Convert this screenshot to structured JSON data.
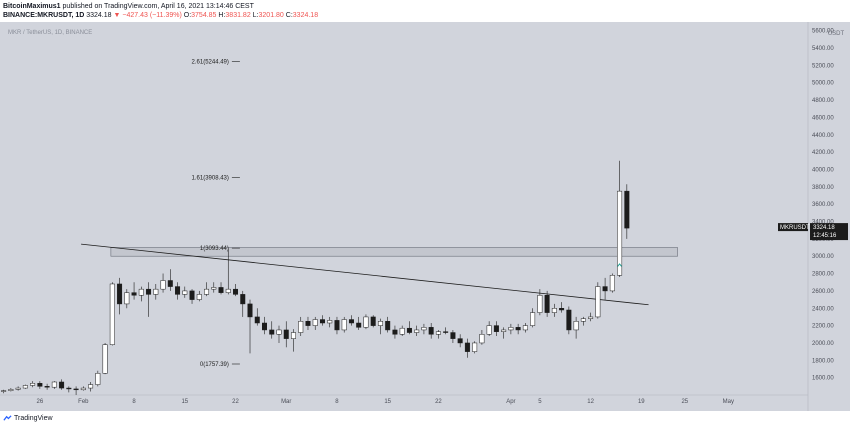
{
  "header": {
    "author": "BitcoinMaximus1",
    "published_text": "published on TradingView.com, April 16, 2021 13:14:46 CEST",
    "symbol_line": "BINANCE:MKRUSDT, 1D",
    "price": "3324.18",
    "change": "▼ −427.43 (−11.39%)",
    "o_label": "O:",
    "o_value": "3754.85",
    "h_label": "H:",
    "h_value": "3831.82",
    "l_label": "L:",
    "l_value": "3201.80",
    "c_label": "C:",
    "c_value": "3324.18"
  },
  "chart_watermark": "MKR / TetherUS, 1D, BINANCE",
  "price_tag": {
    "symbol": "MKRUSDT",
    "price": "3324.18",
    "countdown": "12:45:16"
  },
  "axis_unit": "USDT",
  "footer": {
    "brand": "TradingView"
  },
  "colors": {
    "bg": "#d1d4dc",
    "up": "#ffffff",
    "down": "#1c1c1c",
    "line": "#1c1c1c",
    "arrow": "#26a69a"
  },
  "chart_data": {
    "type": "candlestick",
    "ylim": [
      1400,
      5700
    ],
    "y_ticks": [
      1600,
      1800,
      2000,
      2200,
      2400,
      2600,
      2800,
      3000,
      3200,
      3400,
      3600,
      3800,
      4000,
      4200,
      4400,
      4600,
      4800,
      5000,
      5200,
      5400,
      5600
    ],
    "y_tick_labels": [
      "1600.00",
      "1800.00",
      "2000.00",
      "2200.00",
      "2400.00",
      "2600.00",
      "2800.00",
      "3000.00",
      "3200.00",
      "3400.00",
      "3600.00",
      "3800.00",
      "4000.00",
      "4200.00",
      "4400.00",
      "4600.00",
      "4800.00",
      "5000.00",
      "5200.00",
      "5400.00",
      "5600.00"
    ],
    "x_ticks": [
      {
        "label": "26",
        "i": -6
      },
      {
        "label": "Feb",
        "i": 0
      },
      {
        "label": "8",
        "i": 7
      },
      {
        "label": "15",
        "i": 14
      },
      {
        "label": "22",
        "i": 21
      },
      {
        "label": "Mar",
        "i": 28
      },
      {
        "label": "8",
        "i": 35
      },
      {
        "label": "15",
        "i": 42
      },
      {
        "label": "22",
        "i": 49
      },
      {
        "label": "Apr",
        "i": 59
      },
      {
        "label": "5",
        "i": 63
      },
      {
        "label": "12",
        "i": 70
      },
      {
        "label": "19",
        "i": 77
      },
      {
        "label": "25",
        "i": 83
      },
      {
        "label": "May",
        "i": 89
      }
    ],
    "x_range": [
      -11.5,
      100
    ],
    "fib_levels": [
      {
        "ratio": "2.61",
        "value": 5244.49,
        "label": "2.61(5244.49)"
      },
      {
        "ratio": "1.61",
        "value": 3908.43,
        "label": "1.61(3908.43)"
      },
      {
        "ratio": "1",
        "value": 3093.44,
        "label": "1(3093.44)"
      },
      {
        "ratio": "0",
        "value": 1757.39,
        "label": "0(1757.39)"
      }
    ],
    "resistance_zone": {
      "from_i": 3.8,
      "to_i": 82,
      "low": 3000,
      "high": 3100
    },
    "trendline": {
      "start": {
        "i": 3,
        "price": 3110
      },
      "end": {
        "i": 78,
        "price": 2440
      }
    },
    "last_price": 3324.18,
    "arrow_at": {
      "i": 74,
      "price": 2900
    },
    "candles": [
      [
        -11,
        1440,
        1460,
        1420,
        1450
      ],
      [
        -10,
        1450,
        1480,
        1440,
        1465
      ],
      [
        -9,
        1465,
        1500,
        1450,
        1480
      ],
      [
        -8,
        1480,
        1520,
        1470,
        1510
      ],
      [
        -7,
        1510,
        1560,
        1490,
        1535
      ],
      [
        -6,
        1535,
        1560,
        1470,
        1500
      ],
      [
        -5,
        1500,
        1530,
        1460,
        1490
      ],
      [
        -4,
        1490,
        1560,
        1470,
        1550
      ],
      [
        -3,
        1550,
        1580,
        1460,
        1480
      ],
      [
        -2,
        1480,
        1500,
        1430,
        1470
      ],
      [
        -1,
        1470,
        1500,
        1400,
        1460
      ],
      [
        0,
        1460,
        1500,
        1450,
        1480
      ],
      [
        1,
        1480,
        1550,
        1440,
        1520
      ],
      [
        2,
        1520,
        1680,
        1500,
        1650
      ],
      [
        3,
        1650,
        2000,
        1640,
        1980
      ],
      [
        4,
        1980,
        2700,
        1970,
        2680
      ],
      [
        5,
        2680,
        2750,
        2330,
        2450
      ],
      [
        6,
        2450,
        2620,
        2400,
        2580
      ],
      [
        7,
        2580,
        2700,
        2500,
        2550
      ],
      [
        8,
        2550,
        2650,
        2480,
        2620
      ],
      [
        9,
        2620,
        2700,
        2300,
        2560
      ],
      [
        10,
        2560,
        2680,
        2500,
        2620
      ],
      [
        11,
        2620,
        2800,
        2580,
        2720
      ],
      [
        12,
        2720,
        2850,
        2600,
        2650
      ],
      [
        13,
        2650,
        2700,
        2500,
        2560
      ],
      [
        14,
        2560,
        2650,
        2520,
        2600
      ],
      [
        15,
        2600,
        2620,
        2450,
        2500
      ],
      [
        16,
        2500,
        2600,
        2480,
        2560
      ],
      [
        17,
        2560,
        2700,
        2540,
        2620
      ],
      [
        18,
        2620,
        2700,
        2580,
        2640
      ],
      [
        19,
        2640,
        2700,
        2560,
        2580
      ],
      [
        20,
        2580,
        3090,
        2560,
        2620
      ],
      [
        21,
        2620,
        2680,
        2540,
        2560
      ],
      [
        22,
        2560,
        2600,
        2300,
        2450
      ],
      [
        23,
        2450,
        2500,
        1880,
        2300
      ],
      [
        24,
        2300,
        2400,
        2200,
        2230
      ],
      [
        25,
        2230,
        2300,
        2100,
        2150
      ],
      [
        26,
        2150,
        2250,
        2050,
        2100
      ],
      [
        27,
        2100,
        2200,
        2000,
        2150
      ],
      [
        28,
        2150,
        2250,
        1950,
        2050
      ],
      [
        29,
        2050,
        2160,
        1900,
        2120
      ],
      [
        30,
        2120,
        2300,
        2080,
        2250
      ],
      [
        31,
        2250,
        2300,
        2150,
        2200
      ],
      [
        32,
        2200,
        2300,
        2150,
        2270
      ],
      [
        33,
        2270,
        2320,
        2200,
        2230
      ],
      [
        34,
        2230,
        2300,
        2180,
        2260
      ],
      [
        35,
        2260,
        2300,
        2100,
        2150
      ],
      [
        36,
        2150,
        2300,
        2120,
        2270
      ],
      [
        37,
        2270,
        2320,
        2200,
        2230
      ],
      [
        38,
        2230,
        2300,
        2150,
        2180
      ],
      [
        39,
        2180,
        2330,
        2160,
        2300
      ],
      [
        40,
        2300,
        2320,
        2180,
        2200
      ],
      [
        41,
        2200,
        2280,
        2100,
        2250
      ],
      [
        42,
        2250,
        2300,
        2120,
        2150
      ],
      [
        43,
        2150,
        2200,
        2050,
        2100
      ],
      [
        44,
        2100,
        2200,
        2080,
        2170
      ],
      [
        45,
        2170,
        2250,
        2100,
        2120
      ],
      [
        46,
        2120,
        2200,
        2080,
        2150
      ],
      [
        47,
        2150,
        2220,
        2100,
        2180
      ],
      [
        48,
        2180,
        2230,
        2050,
        2100
      ],
      [
        49,
        2100,
        2150,
        2050,
        2130
      ],
      [
        50,
        2130,
        2180,
        2100,
        2120
      ],
      [
        51,
        2120,
        2150,
        2000,
        2050
      ],
      [
        52,
        2050,
        2100,
        1950,
        2000
      ],
      [
        53,
        2000,
        2050,
        1830,
        1900
      ],
      [
        54,
        1900,
        2020,
        1880,
        2000
      ],
      [
        55,
        2000,
        2150,
        1980,
        2100
      ],
      [
        56,
        2100,
        2250,
        2080,
        2200
      ],
      [
        57,
        2200,
        2250,
        2080,
        2130
      ],
      [
        58,
        2130,
        2180,
        2050,
        2150
      ],
      [
        59,
        2150,
        2220,
        2100,
        2180
      ],
      [
        60,
        2180,
        2220,
        2100,
        2150
      ],
      [
        61,
        2150,
        2230,
        2120,
        2200
      ],
      [
        62,
        2200,
        2400,
        2180,
        2350
      ],
      [
        63,
        2350,
        2620,
        2320,
        2550
      ],
      [
        64,
        2550,
        2600,
        2300,
        2350
      ],
      [
        65,
        2350,
        2450,
        2300,
        2400
      ],
      [
        66,
        2400,
        2470,
        2350,
        2380
      ],
      [
        67,
        2380,
        2420,
        2100,
        2150
      ],
      [
        68,
        2150,
        2300,
        2050,
        2250
      ],
      [
        69,
        2250,
        2300,
        2200,
        2280
      ],
      [
        70,
        2280,
        2350,
        2250,
        2300
      ],
      [
        71,
        2300,
        2700,
        2280,
        2650
      ],
      [
        72,
        2650,
        2750,
        2500,
        2600
      ],
      [
        73,
        2600,
        2800,
        2580,
        2780
      ],
      [
        74,
        2780,
        4100,
        2760,
        3750
      ],
      [
        75,
        3750,
        3830,
        3200,
        3324
      ]
    ]
  }
}
